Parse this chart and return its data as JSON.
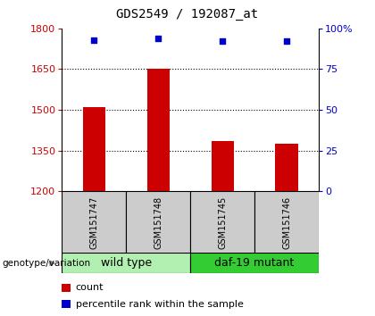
{
  "title": "GDS2549 / 192087_at",
  "samples": [
    "GSM151747",
    "GSM151748",
    "GSM151745",
    "GSM151746"
  ],
  "bar_values": [
    1510,
    1650,
    1385,
    1375
  ],
  "percentile_values": [
    93,
    94,
    92,
    92.5
  ],
  "bar_color": "#cc0000",
  "dot_color": "#0000cc",
  "ylim_left": [
    1200,
    1800
  ],
  "ylim_right": [
    0,
    100
  ],
  "yticks_left": [
    1200,
    1350,
    1500,
    1650,
    1800
  ],
  "yticks_right": [
    0,
    25,
    50,
    75,
    100
  ],
  "ytick_labels_right": [
    "0",
    "25",
    "50",
    "75",
    "100%"
  ],
  "grid_values": [
    1350,
    1500,
    1650
  ],
  "groups": [
    {
      "label": "wild type",
      "samples": [
        0,
        1
      ],
      "color": "#b2f0b2"
    },
    {
      "label": "daf-19 mutant",
      "samples": [
        2,
        3
      ],
      "color": "#33cc33"
    }
  ],
  "group_label": "genotype/variation",
  "legend_items": [
    {
      "color": "#cc0000",
      "label": "count"
    },
    {
      "color": "#0000cc",
      "label": "percentile rank within the sample"
    }
  ],
  "xtick_area_color": "#cccccc",
  "bar_width": 0.35,
  "title_fontsize": 10,
  "tick_fontsize": 8,
  "sample_fontsize": 7,
  "group_fontsize": 9,
  "legend_fontsize": 8
}
